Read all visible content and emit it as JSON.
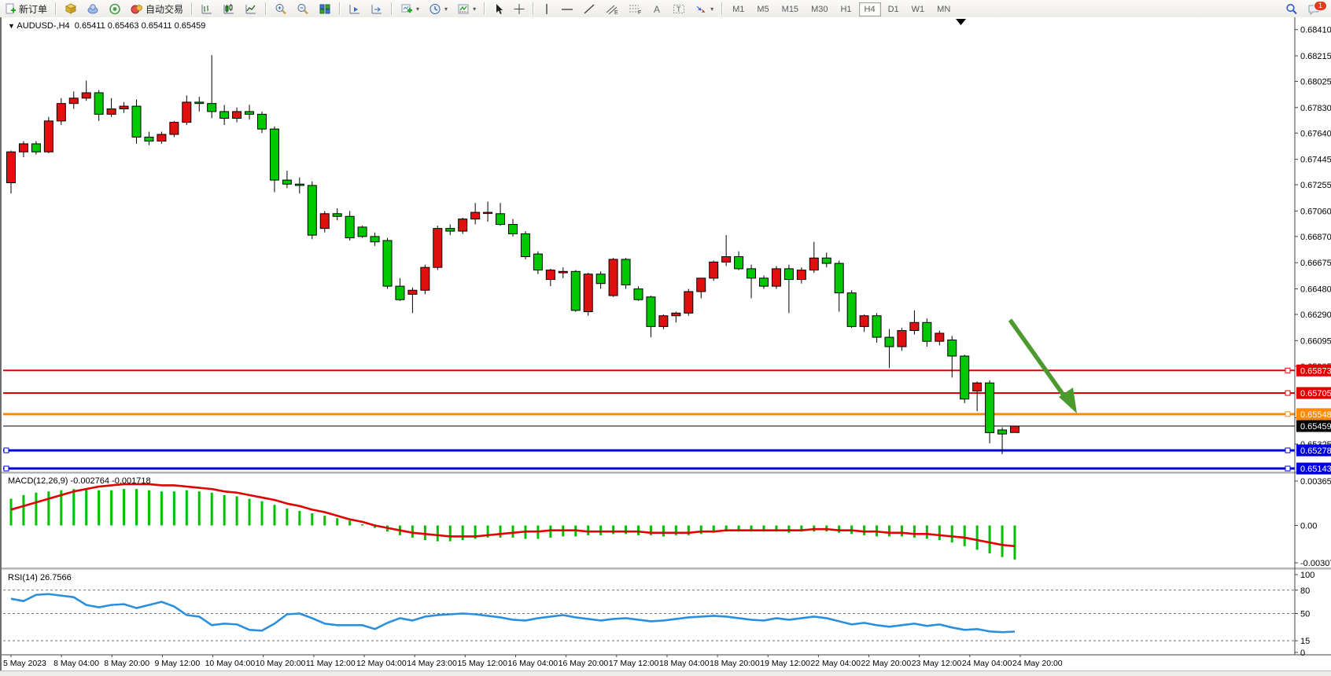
{
  "toolbar": {
    "new_order_label": "新订单",
    "autotrading_label": "自动交易",
    "timeframes": [
      "M1",
      "M5",
      "M15",
      "M30",
      "H1",
      "H4",
      "D1",
      "W1",
      "MN"
    ],
    "active_timeframe": "H4",
    "notification_badge": "1"
  },
  "chart": {
    "symbol_period": "AUDUSD-,H4",
    "ohlc_text": "0.65411 0.65463 0.65411 0.65459",
    "price_ticks": [
      "0.68410",
      "0.68215",
      "0.68025",
      "0.67830",
      "0.67640",
      "0.67445",
      "0.67255",
      "0.67060",
      "0.66870",
      "0.66675",
      "0.66480",
      "0.66290",
      "0.66095",
      "0.65905",
      "0.65520",
      "0.65325"
    ],
    "time_labels": [
      "5 May 2023",
      "8 May 04:00",
      "8 May 20:00",
      "9 May 12:00",
      "10 May 04:00",
      "10 May 20:00",
      "11 May 12:00",
      "12 May 04:00",
      "14 May 23:00",
      "15 May 12:00",
      "16 May 04:00",
      "16 May 20:00",
      "17 May 12:00",
      "18 May 04:00",
      "18 May 20:00",
      "19 May 12:00",
      "22 May 04:00",
      "22 May 20:00",
      "23 May 12:00",
      "24 May 04:00",
      "24 May 20:00"
    ],
    "hlines": [
      {
        "label": "0.65873",
        "price": 0.65873,
        "color": "#e00000",
        "width": 2
      },
      {
        "label": "0.65705",
        "price": 0.65705,
        "color": "#e00000",
        "width": 2
      },
      {
        "label": "0.65548",
        "price": 0.65548,
        "color": "#ff8a00",
        "width": 3
      },
      {
        "label": "0.65278",
        "price": 0.65278,
        "color": "#0000e0",
        "width": 3
      },
      {
        "label": "0.65143",
        "price": 0.65143,
        "color": "#0000e0",
        "width": 3
      }
    ],
    "current_price": {
      "label": "0.65459",
      "price": 0.65459,
      "color": "#000000"
    },
    "colors": {
      "bull": "#e01010",
      "bear": "#00c800",
      "wick": "#000000",
      "arrow": "#4c9a2d",
      "macd_hist": "#00c000",
      "macd_signal": "#e00000",
      "rsi_line": "#2b8fdd"
    }
  },
  "chart_data": {
    "type": "candlestick",
    "symbol": "AUDUSD-",
    "period": "H4",
    "candles_ohlc": [
      [
        0.6727,
        0.6751,
        0.6719,
        0.675
      ],
      [
        0.675,
        0.6758,
        0.6746,
        0.6756
      ],
      [
        0.6756,
        0.6758,
        0.6748,
        0.675
      ],
      [
        0.675,
        0.6776,
        0.6749,
        0.6773
      ],
      [
        0.6773,
        0.679,
        0.677,
        0.6786
      ],
      [
        0.6786,
        0.6795,
        0.6782,
        0.679
      ],
      [
        0.679,
        0.6803,
        0.6788,
        0.6794
      ],
      [
        0.6794,
        0.6796,
        0.6773,
        0.6778
      ],
      [
        0.6778,
        0.679,
        0.6776,
        0.6782
      ],
      [
        0.6782,
        0.6787,
        0.6779,
        0.6784
      ],
      [
        0.6784,
        0.6789,
        0.6756,
        0.6761
      ],
      [
        0.6761,
        0.6765,
        0.6755,
        0.6758
      ],
      [
        0.6758,
        0.6765,
        0.6756,
        0.6763
      ],
      [
        0.6763,
        0.6773,
        0.6761,
        0.6772
      ],
      [
        0.6772,
        0.6792,
        0.677,
        0.6787
      ],
      [
        0.6787,
        0.6791,
        0.678,
        0.6786
      ],
      [
        0.6786,
        0.6822,
        0.6775,
        0.678
      ],
      [
        0.678,
        0.6785,
        0.677,
        0.6775
      ],
      [
        0.6775,
        0.6783,
        0.6772,
        0.678
      ],
      [
        0.678,
        0.6785,
        0.6774,
        0.6778
      ],
      [
        0.6778,
        0.678,
        0.6764,
        0.6767
      ],
      [
        0.6767,
        0.6769,
        0.672,
        0.6729
      ],
      [
        0.6729,
        0.6736,
        0.6723,
        0.6726
      ],
      [
        0.6726,
        0.6731,
        0.6719,
        0.6725
      ],
      [
        0.6725,
        0.6728,
        0.6685,
        0.6688
      ],
      [
        0.6693,
        0.6706,
        0.669,
        0.6704
      ],
      [
        0.6704,
        0.6708,
        0.6699,
        0.6702
      ],
      [
        0.6702,
        0.6706,
        0.6684,
        0.6686
      ],
      [
        0.6694,
        0.6695,
        0.6686,
        0.6687
      ],
      [
        0.6687,
        0.669,
        0.668,
        0.6683
      ],
      [
        0.6684,
        0.6686,
        0.6648,
        0.665
      ],
      [
        0.665,
        0.6656,
        0.6639,
        0.664
      ],
      [
        0.6644,
        0.6649,
        0.663,
        0.6647
      ],
      [
        0.6647,
        0.6666,
        0.6644,
        0.6664
      ],
      [
        0.6664,
        0.6695,
        0.6662,
        0.6693
      ],
      [
        0.6693,
        0.6696,
        0.6688,
        0.6691
      ],
      [
        0.6691,
        0.6701,
        0.6689,
        0.67
      ],
      [
        0.67,
        0.6712,
        0.6696,
        0.6705
      ],
      [
        0.6705,
        0.6713,
        0.6698,
        0.6705
      ],
      [
        0.6704,
        0.6712,
        0.6695,
        0.6696
      ],
      [
        0.6696,
        0.67,
        0.6687,
        0.6689
      ],
      [
        0.6689,
        0.6691,
        0.667,
        0.6672
      ],
      [
        0.6674,
        0.6676,
        0.6659,
        0.6662
      ],
      [
        0.6655,
        0.6663,
        0.665,
        0.6662
      ],
      [
        0.666,
        0.6664,
        0.6656,
        0.6661
      ],
      [
        0.6661,
        0.6662,
        0.6631,
        0.6632
      ],
      [
        0.6631,
        0.666,
        0.6628,
        0.6659
      ],
      [
        0.6659,
        0.6661,
        0.6648,
        0.6652
      ],
      [
        0.6643,
        0.6671,
        0.6642,
        0.667
      ],
      [
        0.667,
        0.6671,
        0.6648,
        0.6651
      ],
      [
        0.6648,
        0.665,
        0.6639,
        0.664
      ],
      [
        0.6642,
        0.6643,
        0.6612,
        0.662
      ],
      [
        0.662,
        0.6629,
        0.6618,
        0.6628
      ],
      [
        0.6628,
        0.6631,
        0.6623,
        0.663
      ],
      [
        0.663,
        0.6648,
        0.6628,
        0.6646
      ],
      [
        0.6646,
        0.6656,
        0.6641,
        0.6656
      ],
      [
        0.6656,
        0.6669,
        0.6654,
        0.6668
      ],
      [
        0.6668,
        0.6688,
        0.6665,
        0.6672
      ],
      [
        0.6672,
        0.6676,
        0.6662,
        0.6663
      ],
      [
        0.6663,
        0.6666,
        0.6641,
        0.6656
      ],
      [
        0.6656,
        0.6658,
        0.6648,
        0.665
      ],
      [
        0.665,
        0.6665,
        0.6648,
        0.6663
      ],
      [
        0.6663,
        0.6666,
        0.663,
        0.6655
      ],
      [
        0.6655,
        0.6664,
        0.6652,
        0.6662
      ],
      [
        0.6662,
        0.6683,
        0.666,
        0.6671
      ],
      [
        0.6671,
        0.6675,
        0.6664,
        0.6667
      ],
      [
        0.6667,
        0.6669,
        0.6631,
        0.6645
      ],
      [
        0.6645,
        0.6647,
        0.6619,
        0.662
      ],
      [
        0.662,
        0.6629,
        0.6616,
        0.6628
      ],
      [
        0.6628,
        0.663,
        0.6608,
        0.6612
      ],
      [
        0.6612,
        0.6618,
        0.6589,
        0.6605
      ],
      [
        0.6605,
        0.6619,
        0.6602,
        0.6617
      ],
      [
        0.6617,
        0.6632,
        0.6614,
        0.6623
      ],
      [
        0.6623,
        0.6626,
        0.6605,
        0.6609
      ],
      [
        0.6609,
        0.6617,
        0.6606,
        0.6615
      ],
      [
        0.661,
        0.6613,
        0.6582,
        0.6598
      ],
      [
        0.6598,
        0.6599,
        0.6563,
        0.6566
      ],
      [
        0.6572,
        0.6579,
        0.6557,
        0.6578
      ],
      [
        0.6578,
        0.658,
        0.6533,
        0.6541
      ],
      [
        0.6543,
        0.6545,
        0.6525,
        0.654
      ],
      [
        0.65411,
        0.65463,
        0.65411,
        0.65459
      ]
    ],
    "macd": {
      "label": "MACD(12,26,9)",
      "values_text": "-0.002764 -0.001718",
      "axis_labels": [
        "0.003656",
        "0.00",
        "-0.00307"
      ],
      "axis_values": [
        0.003656,
        0,
        -0.00307
      ],
      "hist": [
        0.0022,
        0.0025,
        0.0027,
        0.0028,
        0.0029,
        0.003,
        0.003,
        0.0029,
        0.0029,
        0.003,
        0.003,
        0.0029,
        0.0028,
        0.0028,
        0.0029,
        0.0028,
        0.0027,
        0.0025,
        0.0024,
        0.0022,
        0.002,
        0.0017,
        0.0014,
        0.0012,
        0.001,
        0.0008,
        0.0006,
        0.0004,
        0.0001,
        -0.0002,
        -0.0005,
        -0.0008,
        -0.001,
        -0.0012,
        -0.0013,
        -0.0013,
        -0.0012,
        -0.0011,
        -0.001,
        -0.001,
        -0.001,
        -0.0011,
        -0.0011,
        -0.001,
        -0.0009,
        -0.0009,
        -0.0008,
        -0.0008,
        -0.0007,
        -0.0007,
        -0.0008,
        -0.0008,
        -0.0009,
        -0.0008,
        -0.0008,
        -0.0007,
        -0.0006,
        -0.0005,
        -0.0005,
        -0.0005,
        -0.0005,
        -0.0005,
        -0.0006,
        -0.0005,
        -0.0005,
        -0.0005,
        -0.0006,
        -0.0007,
        -0.0008,
        -0.0009,
        -0.0009,
        -0.0009,
        -0.001,
        -0.0011,
        -0.0012,
        -0.0014,
        -0.0017,
        -0.002,
        -0.0023,
        -0.0026,
        -0.0028
      ],
      "signal": [
        0.0013,
        0.0016,
        0.0019,
        0.0022,
        0.0025,
        0.0028,
        0.003,
        0.0032,
        0.0033,
        0.0034,
        0.0034,
        0.0034,
        0.0033,
        0.0033,
        0.0032,
        0.0031,
        0.003,
        0.0028,
        0.0027,
        0.0025,
        0.0023,
        0.0021,
        0.0018,
        0.0016,
        0.0013,
        0.0011,
        0.0008,
        0.0005,
        0.0003,
        0.0,
        -0.0002,
        -0.0004,
        -0.0006,
        -0.0007,
        -0.0008,
        -0.0009,
        -0.0009,
        -0.0009,
        -0.0008,
        -0.0007,
        -0.0006,
        -0.0005,
        -0.0005,
        -0.0004,
        -0.0004,
        -0.0004,
        -0.0005,
        -0.0005,
        -0.0005,
        -0.0005,
        -0.0005,
        -0.0006,
        -0.0006,
        -0.0006,
        -0.0006,
        -0.0005,
        -0.0005,
        -0.0004,
        -0.0004,
        -0.0004,
        -0.0004,
        -0.0004,
        -0.0004,
        -0.0004,
        -0.0003,
        -0.0003,
        -0.0004,
        -0.0004,
        -0.0005,
        -0.0005,
        -0.0006,
        -0.0006,
        -0.0007,
        -0.0007,
        -0.0008,
        -0.0009,
        -0.001,
        -0.0012,
        -0.0014,
        -0.0016,
        -0.0017
      ]
    },
    "rsi": {
      "label": "RSI(14)",
      "value_text": "26.7566",
      "axis_labels": [
        "100",
        "80",
        "50",
        "15",
        "0"
      ],
      "axis_values": [
        100,
        80,
        50,
        15,
        0
      ],
      "dashed_levels": [
        80,
        50,
        15
      ],
      "values": [
        69,
        66,
        74,
        75,
        73,
        71,
        61,
        58,
        61,
        62,
        57,
        61,
        65,
        59,
        48,
        46,
        35,
        37,
        36,
        29,
        28,
        37,
        49,
        50,
        44,
        37,
        35,
        35,
        35,
        30,
        38,
        44,
        41,
        46,
        48,
        49,
        50,
        49,
        47,
        45,
        42,
        41,
        44,
        46,
        48,
        45,
        43,
        41,
        43,
        44,
        42,
        40,
        41,
        43,
        45,
        46,
        47,
        46,
        44,
        42,
        41,
        44,
        42,
        44,
        46,
        44,
        40,
        36,
        38,
        35,
        33,
        35,
        37,
        34,
        36,
        32,
        29,
        30,
        27,
        26,
        26.76
      ]
    }
  }
}
